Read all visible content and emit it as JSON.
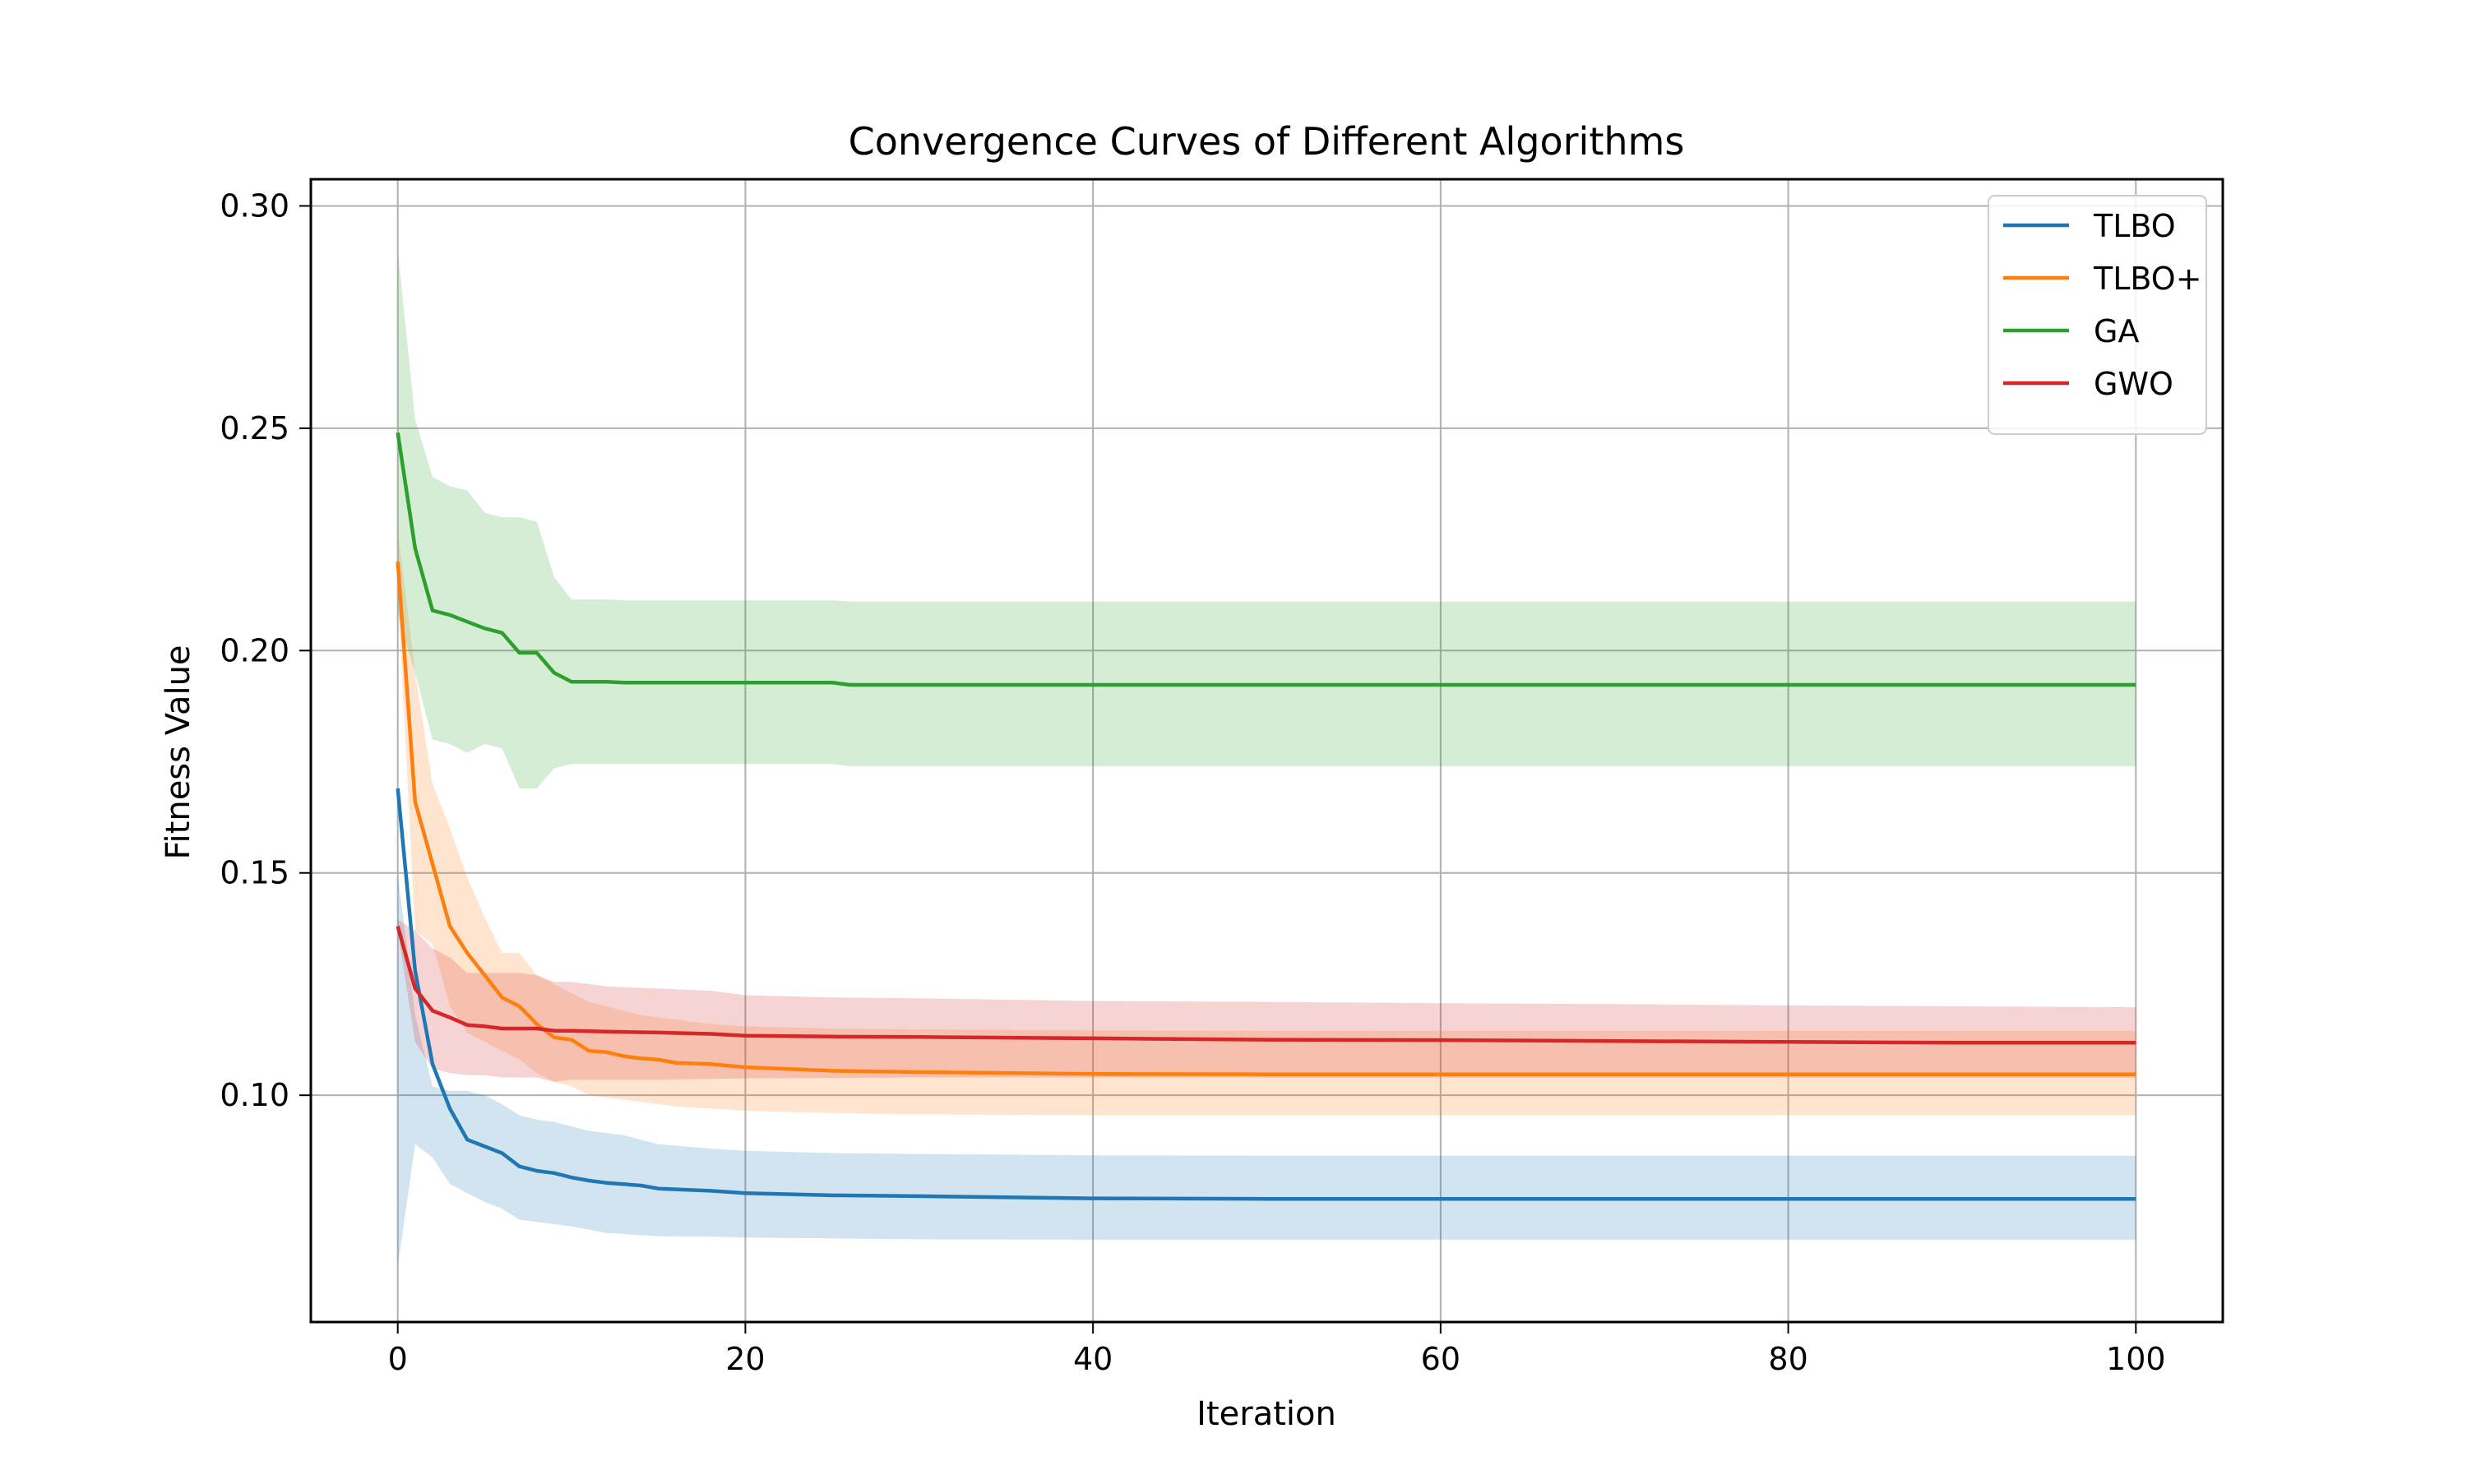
{
  "chart_data": {
    "type": "line",
    "title": "Convergence Curves of Different Algorithms",
    "xlabel": "Iteration",
    "ylabel": "Fitness Value",
    "xlim": [
      -5,
      105
    ],
    "ylim": [
      0.049,
      0.306
    ],
    "xticks": [
      0,
      20,
      40,
      60,
      80,
      100
    ],
    "yticks": [
      0.1,
      0.15,
      0.2,
      0.25,
      0.3
    ],
    "xtick_labels": [
      "0",
      "20",
      "40",
      "60",
      "80",
      "100"
    ],
    "ytick_labels": [
      "0.10",
      "0.15",
      "0.20",
      "0.25",
      "0.30"
    ],
    "grid": true,
    "legend_position": "top-right",
    "series": [
      {
        "name": "TLBO",
        "color": "#1f77b4",
        "band_color": "#1f77b4",
        "x": [
          0,
          1,
          2,
          3,
          4,
          5,
          6,
          7,
          8,
          9,
          10,
          11,
          12,
          13,
          14,
          15,
          18,
          20,
          25,
          30,
          40,
          50,
          60,
          70,
          80,
          90,
          100
        ],
        "mean": [
          0.169,
          0.128,
          0.107,
          0.097,
          0.09,
          0.0885,
          0.087,
          0.084,
          0.083,
          0.0825,
          0.0815,
          0.0808,
          0.0803,
          0.08,
          0.0797,
          0.079,
          0.0785,
          0.078,
          0.0775,
          0.0773,
          0.0768,
          0.0767,
          0.0767,
          0.0767,
          0.0767,
          0.0767,
          0.0767
        ],
        "upper": [
          0.15,
          0.118,
          0.102,
          0.101,
          0.101,
          0.1,
          0.098,
          0.0955,
          0.0945,
          0.094,
          0.093,
          0.092,
          0.0915,
          0.091,
          0.09,
          0.089,
          0.088,
          0.0875,
          0.087,
          0.0868,
          0.0865,
          0.0864,
          0.0864,
          0.0864,
          0.0864,
          0.0864,
          0.0864
        ],
        "lower": [
          0.0615,
          0.089,
          0.086,
          0.08,
          0.078,
          0.076,
          0.0745,
          0.072,
          0.0715,
          0.071,
          0.0705,
          0.0698,
          0.069,
          0.0688,
          0.0685,
          0.0683,
          0.0682,
          0.068,
          0.0678,
          0.0676,
          0.0675,
          0.0675,
          0.0675,
          0.0675,
          0.0675,
          0.0675,
          0.0675
        ]
      },
      {
        "name": "TLBO+",
        "color": "#ff7f0e",
        "band_color": "#ff7f0e",
        "x": [
          0,
          1,
          2,
          3,
          4,
          5,
          6,
          7,
          8,
          9,
          10,
          11,
          12,
          13,
          14,
          15,
          16,
          18,
          20,
          25,
          30,
          40,
          50,
          60,
          70,
          80,
          90,
          100
        ],
        "mean": [
          0.22,
          0.166,
          0.152,
          0.138,
          0.132,
          0.127,
          0.122,
          0.12,
          0.116,
          0.113,
          0.1125,
          0.11,
          0.1097,
          0.1088,
          0.1083,
          0.108,
          0.1073,
          0.107,
          0.1063,
          0.1055,
          0.1052,
          0.1048,
          0.1047,
          0.1047,
          0.1047,
          0.1047,
          0.1047,
          0.1047
        ],
        "upper": [
          0.227,
          0.195,
          0.17,
          0.16,
          0.149,
          0.14,
          0.132,
          0.132,
          0.127,
          0.125,
          0.123,
          0.121,
          0.12,
          0.119,
          0.118,
          0.1175,
          0.117,
          0.116,
          0.1155,
          0.115,
          0.1148,
          0.1146,
          0.1145,
          0.1145,
          0.1145,
          0.1145,
          0.1145,
          0.1145
        ],
        "lower": [
          0.213,
          0.137,
          0.134,
          0.12,
          0.114,
          0.112,
          0.11,
          0.108,
          0.105,
          0.103,
          0.102,
          0.1,
          0.0995,
          0.099,
          0.0985,
          0.098,
          0.0975,
          0.097,
          0.0965,
          0.096,
          0.0957,
          0.0955,
          0.0955,
          0.0955,
          0.0955,
          0.0955,
          0.0955,
          0.0955
        ]
      },
      {
        "name": "GA",
        "color": "#2ca02c",
        "band_color": "#2ca02c",
        "x": [
          0,
          1,
          2,
          3,
          4,
          5,
          6,
          7,
          8,
          9,
          10,
          11,
          12,
          13,
          14,
          15,
          20,
          25,
          26,
          30,
          40,
          50,
          60,
          70,
          80,
          90,
          100
        ],
        "mean": [
          0.249,
          0.223,
          0.209,
          0.208,
          0.2065,
          0.205,
          0.204,
          0.1995,
          0.1995,
          0.195,
          0.193,
          0.193,
          0.193,
          0.1928,
          0.1928,
          0.1928,
          0.1928,
          0.1928,
          0.1923,
          0.1923,
          0.1923,
          0.1923,
          0.1923,
          0.1923,
          0.1923,
          0.1923,
          0.1923
        ],
        "upper": [
          0.29,
          0.252,
          0.239,
          0.237,
          0.236,
          0.231,
          0.23,
          0.23,
          0.229,
          0.2165,
          0.2115,
          0.2115,
          0.2115,
          0.2113,
          0.2113,
          0.2113,
          0.2113,
          0.2113,
          0.211,
          0.211,
          0.211,
          0.211,
          0.211,
          0.211,
          0.211,
          0.211,
          0.211
        ],
        "lower": [
          0.208,
          0.195,
          0.18,
          0.179,
          0.177,
          0.179,
          0.178,
          0.169,
          0.169,
          0.1735,
          0.1745,
          0.1745,
          0.1745,
          0.1745,
          0.1745,
          0.1745,
          0.1745,
          0.1745,
          0.174,
          0.174,
          0.174,
          0.174,
          0.174,
          0.174,
          0.174,
          0.174,
          0.174
        ]
      },
      {
        "name": "GWO",
        "color": "#d62728",
        "band_color": "#d62728",
        "x": [
          0,
          1,
          2,
          3,
          4,
          5,
          6,
          7,
          8,
          9,
          10,
          12,
          15,
          18,
          20,
          25,
          30,
          40,
          50,
          60,
          70,
          80,
          90,
          100
        ],
        "mean": [
          0.138,
          0.124,
          0.119,
          0.1175,
          0.1158,
          0.1155,
          0.115,
          0.115,
          0.115,
          0.1145,
          0.1145,
          0.1143,
          0.1141,
          0.1138,
          0.1134,
          0.1132,
          0.1131,
          0.1128,
          0.1125,
          0.1124,
          0.1122,
          0.112,
          0.1118,
          0.1118
        ],
        "upper": [
          0.1395,
          0.137,
          0.133,
          0.131,
          0.1275,
          0.1275,
          0.1275,
          0.1275,
          0.127,
          0.1255,
          0.1255,
          0.1245,
          0.124,
          0.1235,
          0.1225,
          0.122,
          0.1218,
          0.1212,
          0.121,
          0.1207,
          0.1205,
          0.1202,
          0.12,
          0.1198
        ],
        "lower": [
          0.137,
          0.112,
          0.106,
          0.105,
          0.1045,
          0.1045,
          0.104,
          0.104,
          0.104,
          0.103,
          0.1035,
          0.1035,
          0.1035,
          0.1037,
          0.1038,
          0.1039,
          0.104,
          0.104,
          0.104,
          0.104,
          0.104,
          0.104,
          0.104,
          0.104
        ]
      }
    ]
  }
}
